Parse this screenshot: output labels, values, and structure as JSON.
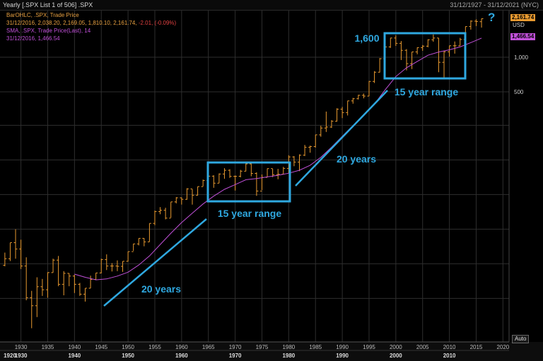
{
  "header": {
    "title": "Yearly [.SPX List 1 of 506] .SPX",
    "date_range": "31/12/1927 - 31/12/2021 (NYC)"
  },
  "legend": {
    "ohlc_label": "BarOHLC, .SPX, Trade Price",
    "ohlc_values": "31/12/2016, 2,038.20, 2,169.05, 1,810.10, 2,161.74,",
    "ohlc_change": "-2.01, (-0.09%)",
    "sma_label": "SMA, .SPX, Trade Price(Last),  14",
    "sma_values": "31/12/2016, 1,466.54"
  },
  "price_tags": {
    "last_price": "2,161.74",
    "sma_value": "1,466.54",
    "currency": "USD"
  },
  "controls": {
    "auto_label": "Auto"
  },
  "colors": {
    "bars": "#e89a30",
    "sma": "#c050d8",
    "annotation": "#2fa8e0",
    "background": "#000000",
    "grid": "#2e2e2e"
  },
  "chart_data": {
    "type": "ohlc",
    "title": ".SPX Yearly",
    "y_scale": "log",
    "y_ticks": [
      {
        "value": 500,
        "label": "500"
      },
      {
        "value": 1000,
        "label": "1,000"
      }
    ],
    "x_year_ticks": [
      1930,
      1935,
      1940,
      1945,
      1950,
      1955,
      1960,
      1965,
      1970,
      1975,
      1980,
      1985,
      1990,
      1995,
      2000,
      2005,
      2010,
      2015,
      2020
    ],
    "decade_labels": [
      "1920",
      "1930",
      "1940",
      "1950",
      "1960",
      "1970",
      "1980",
      "1990",
      "2000",
      "2010"
    ],
    "series": [
      {
        "name": "BarOHLC .SPX Trade Price",
        "kind": "ohlc",
        "points": [
          {
            "year": 1927,
            "open": 15.5,
            "high": 20,
            "low": 15.2,
            "close": 17.7
          },
          {
            "year": 1928,
            "open": 17.7,
            "high": 24.4,
            "low": 16.9,
            "close": 24.4
          },
          {
            "year": 1929,
            "open": 24.4,
            "high": 31.9,
            "low": 17.7,
            "close": 21.5
          },
          {
            "year": 1930,
            "open": 21.5,
            "high": 25.9,
            "low": 14.4,
            "close": 15.3
          },
          {
            "year": 1931,
            "open": 15.3,
            "high": 18.2,
            "low": 7.7,
            "close": 8.1
          },
          {
            "year": 1932,
            "open": 8.1,
            "high": 9.3,
            "low": 4.4,
            "close": 6.9
          },
          {
            "year": 1933,
            "open": 6.9,
            "high": 12.2,
            "low": 5.5,
            "close": 10.1
          },
          {
            "year": 1934,
            "open": 10.1,
            "high": 11.8,
            "low": 8.4,
            "close": 9.5
          },
          {
            "year": 1935,
            "open": 9.5,
            "high": 13.5,
            "low": 8.1,
            "close": 13.4
          },
          {
            "year": 1936,
            "open": 13.4,
            "high": 17.7,
            "low": 13.4,
            "close": 17.2
          },
          {
            "year": 1937,
            "open": 17.2,
            "high": 18.7,
            "low": 10.2,
            "close": 10.6
          },
          {
            "year": 1938,
            "open": 10.6,
            "high": 13.8,
            "low": 8.5,
            "close": 13.2
          },
          {
            "year": 1939,
            "open": 13.2,
            "high": 13.2,
            "low": 10.2,
            "close": 12.5
          },
          {
            "year": 1940,
            "open": 12.5,
            "high": 12.8,
            "low": 8.9,
            "close": 10.6
          },
          {
            "year": 1941,
            "open": 10.6,
            "high": 10.9,
            "low": 8.4,
            "close": 8.7
          },
          {
            "year": 1942,
            "open": 8.7,
            "high": 9.8,
            "low": 7.5,
            "close": 9.8
          },
          {
            "year": 1943,
            "open": 9.8,
            "high": 12.6,
            "low": 9.8,
            "close": 11.7
          },
          {
            "year": 1944,
            "open": 11.7,
            "high": 13.3,
            "low": 11.6,
            "close": 13.3
          },
          {
            "year": 1945,
            "open": 13.3,
            "high": 17.7,
            "low": 13.2,
            "close": 17.4
          },
          {
            "year": 1946,
            "open": 17.4,
            "high": 19.3,
            "low": 14.1,
            "close": 15.3
          },
          {
            "year": 1947,
            "open": 15.3,
            "high": 16.2,
            "low": 13.7,
            "close": 15.3
          },
          {
            "year": 1948,
            "open": 15.3,
            "high": 17.1,
            "low": 13.8,
            "close": 15.2
          },
          {
            "year": 1949,
            "open": 15.2,
            "high": 16.8,
            "low": 13.6,
            "close": 16.8
          },
          {
            "year": 1950,
            "open": 16.8,
            "high": 20.4,
            "low": 16.7,
            "close": 20.4
          },
          {
            "year": 1951,
            "open": 20.4,
            "high": 23.9,
            "low": 20.7,
            "close": 23.8
          },
          {
            "year": 1952,
            "open": 23.8,
            "high": 26.6,
            "low": 23.1,
            "close": 26.6
          },
          {
            "year": 1953,
            "open": 26.6,
            "high": 26.7,
            "low": 22.7,
            "close": 24.8
          },
          {
            "year": 1954,
            "open": 24.8,
            "high": 35.9,
            "low": 24.8,
            "close": 35.9
          },
          {
            "year": 1955,
            "open": 35.9,
            "high": 46.4,
            "low": 34.6,
            "close": 45.5
          },
          {
            "year": 1956,
            "open": 45.5,
            "high": 49.7,
            "low": 43.1,
            "close": 46.7
          },
          {
            "year": 1957,
            "open": 46.7,
            "high": 49.1,
            "low": 38.9,
            "close": 39.9
          },
          {
            "year": 1958,
            "open": 39.9,
            "high": 55.2,
            "low": 40.3,
            "close": 55.2
          },
          {
            "year": 1959,
            "open": 55.2,
            "high": 60.7,
            "low": 53.6,
            "close": 59.9
          },
          {
            "year": 1960,
            "open": 59.9,
            "high": 60.4,
            "low": 52.3,
            "close": 58.1
          },
          {
            "year": 1961,
            "open": 58.1,
            "high": 72.6,
            "low": 57.6,
            "close": 71.6
          },
          {
            "year": 1962,
            "open": 71.6,
            "high": 71.1,
            "low": 52.3,
            "close": 63.1
          },
          {
            "year": 1963,
            "open": 63.1,
            "high": 75.0,
            "low": 62.7,
            "close": 75.0
          },
          {
            "year": 1964,
            "open": 75.0,
            "high": 86.3,
            "low": 75.4,
            "close": 84.8
          },
          {
            "year": 1965,
            "open": 84.8,
            "high": 92.6,
            "low": 81.6,
            "close": 92.4
          },
          {
            "year": 1966,
            "open": 92.4,
            "high": 94.1,
            "low": 73.2,
            "close": 80.3
          },
          {
            "year": 1967,
            "open": 80.3,
            "high": 97.6,
            "low": 80.4,
            "close": 96.5
          },
          {
            "year": 1968,
            "open": 96.5,
            "high": 108.4,
            "low": 87.7,
            "close": 103.9
          },
          {
            "year": 1969,
            "open": 103.9,
            "high": 106.2,
            "low": 89.2,
            "close": 92.1
          },
          {
            "year": 1970,
            "open": 92.1,
            "high": 93.5,
            "low": 69.3,
            "close": 92.2
          },
          {
            "year": 1971,
            "open": 92.2,
            "high": 104.8,
            "low": 90.2,
            "close": 102.1
          },
          {
            "year": 1972,
            "open": 102.1,
            "high": 119.1,
            "low": 101.7,
            "close": 118.1
          },
          {
            "year": 1973,
            "open": 118.1,
            "high": 120.2,
            "low": 92.2,
            "close": 97.6
          },
          {
            "year": 1974,
            "open": 97.6,
            "high": 99.8,
            "low": 62.3,
            "close": 68.6
          },
          {
            "year": 1975,
            "open": 68.6,
            "high": 95.6,
            "low": 70.0,
            "close": 90.2
          },
          {
            "year": 1976,
            "open": 90.2,
            "high": 107.8,
            "low": 90.9,
            "close": 107.5
          },
          {
            "year": 1977,
            "open": 107.5,
            "high": 107.0,
            "low": 90.7,
            "close": 95.1
          },
          {
            "year": 1978,
            "open": 95.1,
            "high": 106.9,
            "low": 86.9,
            "close": 96.1
          },
          {
            "year": 1979,
            "open": 96.1,
            "high": 111.3,
            "low": 96.1,
            "close": 107.9
          },
          {
            "year": 1980,
            "open": 107.9,
            "high": 140.5,
            "low": 98.2,
            "close": 135.8
          },
          {
            "year": 1981,
            "open": 135.8,
            "high": 138.1,
            "low": 112.8,
            "close": 122.6
          },
          {
            "year": 1982,
            "open": 122.6,
            "high": 143.0,
            "low": 102.2,
            "close": 140.6
          },
          {
            "year": 1983,
            "open": 140.6,
            "high": 172.7,
            "low": 138.3,
            "close": 164.9
          },
          {
            "year": 1984,
            "open": 164.9,
            "high": 170.4,
            "low": 147.8,
            "close": 167.2
          },
          {
            "year": 1985,
            "open": 167.2,
            "high": 212.0,
            "low": 163.7,
            "close": 211.3
          },
          {
            "year": 1986,
            "open": 211.3,
            "high": 254.0,
            "low": 203.5,
            "close": 242.2
          },
          {
            "year": 1987,
            "open": 242.2,
            "high": 336.8,
            "low": 223.9,
            "close": 247.1
          },
          {
            "year": 1988,
            "open": 247.1,
            "high": 283.7,
            "low": 242.6,
            "close": 277.7
          },
          {
            "year": 1989,
            "open": 277.7,
            "high": 359.8,
            "low": 275.3,
            "close": 353.4
          },
          {
            "year": 1990,
            "open": 353.4,
            "high": 369.8,
            "low": 295.5,
            "close": 330.2
          },
          {
            "year": 1991,
            "open": 330.2,
            "high": 418.3,
            "low": 311.5,
            "close": 417.1
          },
          {
            "year": 1992,
            "open": 417.1,
            "high": 442.7,
            "low": 394.5,
            "close": 435.7
          },
          {
            "year": 1993,
            "open": 435.7,
            "high": 471.3,
            "low": 429.1,
            "close": 466.5
          },
          {
            "year": 1994,
            "open": 466.5,
            "high": 482.9,
            "low": 438.9,
            "close": 459.3
          },
          {
            "year": 1995,
            "open": 459.3,
            "high": 621.7,
            "low": 459.1,
            "close": 615.9
          },
          {
            "year": 1996,
            "open": 615.9,
            "high": 757.0,
            "low": 597.3,
            "close": 740.7
          },
          {
            "year": 1997,
            "open": 740.7,
            "high": 983.8,
            "low": 737.0,
            "close": 970.4
          },
          {
            "year": 1998,
            "open": 970.4,
            "high": 1244.9,
            "low": 923.3,
            "close": 1229.2
          },
          {
            "year": 1999,
            "open": 1229.2,
            "high": 1473.1,
            "low": 1205.5,
            "close": 1469.3
          },
          {
            "year": 2000,
            "open": 1469.3,
            "high": 1553.1,
            "low": 1254.1,
            "close": 1320.3
          },
          {
            "year": 2001,
            "open": 1320.3,
            "high": 1383.4,
            "low": 944.8,
            "close": 1148.1
          },
          {
            "year": 2002,
            "open": 1148.1,
            "high": 1176.9,
            "low": 768.6,
            "close": 879.8
          },
          {
            "year": 2003,
            "open": 879.8,
            "high": 1112.6,
            "low": 788.9,
            "close": 1111.9
          },
          {
            "year": 2004,
            "open": 1111.9,
            "high": 1217.3,
            "low": 1060.7,
            "close": 1211.9
          },
          {
            "year": 2005,
            "open": 1211.9,
            "high": 1275.8,
            "low": 1136.2,
            "close": 1248.3
          },
          {
            "year": 2006,
            "open": 1248.3,
            "high": 1431.8,
            "low": 1219.3,
            "close": 1418.3
          },
          {
            "year": 2007,
            "open": 1418.3,
            "high": 1576.1,
            "low": 1363.9,
            "close": 1468.4
          },
          {
            "year": 2008,
            "open": 1468.4,
            "high": 1471.8,
            "low": 741.0,
            "close": 903.3
          },
          {
            "year": 2009,
            "open": 903.3,
            "high": 1130.4,
            "low": 666.8,
            "close": 1115.1
          },
          {
            "year": 2010,
            "open": 1115.1,
            "high": 1262.6,
            "low": 1010.9,
            "close": 1257.6
          },
          {
            "year": 2011,
            "open": 1257.6,
            "high": 1370.6,
            "low": 1074.8,
            "close": 1257.6
          },
          {
            "year": 2012,
            "open": 1257.6,
            "high": 1474.5,
            "low": 1258.9,
            "close": 1426.2
          },
          {
            "year": 2013,
            "open": 1426.2,
            "high": 1849.4,
            "low": 1426.2,
            "close": 1848.4
          },
          {
            "year": 2014,
            "open": 1848.4,
            "high": 2093.6,
            "low": 1737.9,
            "close": 2058.9
          },
          {
            "year": 2015,
            "open": 2058.9,
            "high": 2134.7,
            "low": 1867.0,
            "close": 2043.9
          },
          {
            "year": 2016,
            "open": 2038.2,
            "high": 2169.05,
            "low": 1810.1,
            "close": 2161.74
          }
        ]
      },
      {
        "name": "SMA .SPX Trade Price(Last) 14",
        "kind": "line",
        "points": [
          {
            "year": 1940,
            "value": 13.0
          },
          {
            "year": 1942,
            "value": 12.2
          },
          {
            "year": 1944,
            "value": 11.6
          },
          {
            "year": 1946,
            "value": 11.8
          },
          {
            "year": 1948,
            "value": 12.5
          },
          {
            "year": 1950,
            "value": 13.5
          },
          {
            "year": 1952,
            "value": 15.6
          },
          {
            "year": 1954,
            "value": 18.7
          },
          {
            "year": 1956,
            "value": 23.5
          },
          {
            "year": 1958,
            "value": 29.5
          },
          {
            "year": 1960,
            "value": 36.5
          },
          {
            "year": 1962,
            "value": 44.0
          },
          {
            "year": 1964,
            "value": 53.0
          },
          {
            "year": 1966,
            "value": 62.0
          },
          {
            "year": 1968,
            "value": 71.0
          },
          {
            "year": 1970,
            "value": 78.0
          },
          {
            "year": 1972,
            "value": 86.0
          },
          {
            "year": 1974,
            "value": 88.0
          },
          {
            "year": 1976,
            "value": 91.0
          },
          {
            "year": 1978,
            "value": 94.0
          },
          {
            "year": 1980,
            "value": 98.0
          },
          {
            "year": 1982,
            "value": 104.0
          },
          {
            "year": 1984,
            "value": 115.0
          },
          {
            "year": 1986,
            "value": 135.0
          },
          {
            "year": 1988,
            "value": 165.0
          },
          {
            "year": 1990,
            "value": 205.0
          },
          {
            "year": 1992,
            "value": 255.0
          },
          {
            "year": 1994,
            "value": 310.0
          },
          {
            "year": 1996,
            "value": 390.0
          },
          {
            "year": 1998,
            "value": 520.0
          },
          {
            "year": 2000,
            "value": 680.0
          },
          {
            "year": 2002,
            "value": 810.0
          },
          {
            "year": 2004,
            "value": 920.0
          },
          {
            "year": 2006,
            "value": 1040.0
          },
          {
            "year": 2008,
            "value": 1110.0
          },
          {
            "year": 2010,
            "value": 1160.0
          },
          {
            "year": 2012,
            "value": 1230.0
          },
          {
            "year": 2014,
            "value": 1340.0
          },
          {
            "year": 2016,
            "value": 1466.54
          }
        ]
      }
    ],
    "annotations": {
      "trend_lines": [
        {
          "label": "20 years",
          "from_year": 1945,
          "to_year": 1965
        },
        {
          "label": "20 years",
          "from_year": 1980,
          "to_year": 1998
        }
      ],
      "range_boxes": [
        {
          "label": "15 year range",
          "from_year": 1964.7,
          "to_year": 1980.5,
          "low": 62,
          "high": 120
        },
        {
          "label": "15 year range",
          "from_year": 1997.7,
          "to_year": 2013.3,
          "low": 640,
          "high": 1620,
          "price_label": "1,600"
        }
      ],
      "question": "?"
    }
  }
}
